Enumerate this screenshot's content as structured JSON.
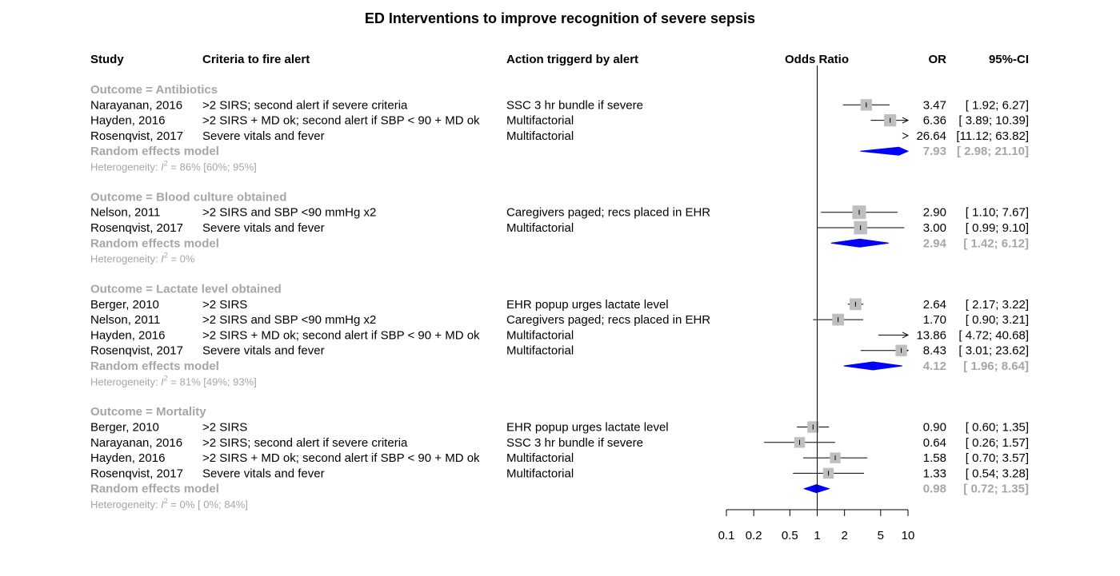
{
  "chart_data": {
    "type": "forest",
    "title": "ED Interventions to improve recognition of severe sepsis",
    "headers": {
      "study": "Study",
      "criteria": "Criteria to fire alert",
      "action": "Action triggerd by alert",
      "effect": "Odds Ratio",
      "or": "OR",
      "ci": "95%-CI"
    },
    "x_scale": "log",
    "xlim": [
      0.1,
      10
    ],
    "ticks": [
      "0.1",
      "0.2",
      "0.5",
      "1",
      "2",
      "5",
      "10"
    ],
    "tick_values": [
      0.1,
      0.2,
      0.5,
      1,
      2,
      5,
      10
    ],
    "reference_line": 1,
    "colors": {
      "box": "#bfbfbf",
      "diamond": "#0000ff",
      "summary_text": "#a6a6a6",
      "text": "#000000"
    },
    "groups": [
      {
        "label": "Outcome = Antibiotics",
        "studies": [
          {
            "study": "Narayanan, 2016",
            "criteria": ">2 SIRS; second alert if severe criteria",
            "action": "SSC 3 hr bundle if severe",
            "or": 3.47,
            "lo": 1.92,
            "hi": 6.27,
            "or_text": "3.47",
            "ci_text": "[ 1.92;  6.27]",
            "weight": 0.7
          },
          {
            "study": "Hayden, 2016",
            "criteria": ">2 SIRS + MD ok; second alert if SBP < 90 + MD ok",
            "action": "Multifactorial",
            "or": 6.36,
            "lo": 3.89,
            "hi": 10.39,
            "or_text": "6.36",
            "ci_text": "[ 3.89; 10.39]",
            "weight": 0.8
          },
          {
            "study": "Rosenqvist, 2017",
            "criteria": "Severe vitals and fever",
            "action": "Multifactorial",
            "or": 26.64,
            "lo": 11.12,
            "hi": 63.82,
            "or_text": "26.64",
            "ci_text": "[11.12; 63.82]",
            "weight": 0.6
          }
        ],
        "model": {
          "label": "Random effects model",
          "or": 7.93,
          "lo": 2.98,
          "hi": 21.1,
          "or_text": "7.93",
          "ci_text": "[ 2.98; 21.10]"
        },
        "heterogeneity": {
          "prefix": "Heterogeneity: ",
          "i": "I",
          "sup": "2",
          "suffix": " = 86% [60%; 95%]"
        }
      },
      {
        "label": "Outcome = Blood culture obtained",
        "studies": [
          {
            "study": "Nelson, 2011",
            "criteria": ">2 SIRS and SBP <90 mmHg x2",
            "action": "Caregivers paged; recs placed in EHR",
            "or": 2.9,
            "lo": 1.1,
            "hi": 7.67,
            "or_text": "2.90",
            "ci_text": "[ 1.10;  7.67]",
            "weight": 1.0
          },
          {
            "study": "Rosenqvist, 2017",
            "criteria": "Severe vitals and fever",
            "action": "Multifactorial",
            "or": 3.0,
            "lo": 0.99,
            "hi": 9.1,
            "or_text": "3.00",
            "ci_text": "[ 0.99;  9.10]",
            "weight": 0.95
          }
        ],
        "model": {
          "label": "Random effects model",
          "or": 2.94,
          "lo": 1.42,
          "hi": 6.12,
          "or_text": "2.94",
          "ci_text": "[ 1.42;  6.12]"
        },
        "heterogeneity": {
          "prefix": "Heterogeneity: ",
          "i": "I",
          "sup": "2",
          "suffix": " = 0%"
        }
      },
      {
        "label": "Outcome = Lactate level obtained",
        "studies": [
          {
            "study": "Berger, 2010",
            "criteria": ">2 SIRS",
            "action": "EHR popup urges lactate level",
            "or": 2.64,
            "lo": 2.17,
            "hi": 3.22,
            "or_text": "2.64",
            "ci_text": "[ 2.17;  3.22]",
            "weight": 0.75
          },
          {
            "study": "Nelson, 2011",
            "criteria": ">2 SIRS and SBP <90 mmHg x2",
            "action": "Caregivers paged; recs placed in EHR",
            "or": 1.7,
            "lo": 0.9,
            "hi": 3.21,
            "or_text": "1.70",
            "ci_text": "[ 0.90;  3.21]",
            "weight": 0.75
          },
          {
            "study": "Hayden, 2016",
            "criteria": ">2 SIRS + MD ok; second alert if SBP < 90 + MD ok",
            "action": "Multifactorial",
            "or": 13.86,
            "lo": 4.72,
            "hi": 40.68,
            "or_text": "13.86",
            "ci_text": "[ 4.72; 40.68]",
            "weight": 0.5
          },
          {
            "study": "Rosenqvist, 2017",
            "criteria": "Severe vitals and fever",
            "action": "Multifactorial",
            "or": 8.43,
            "lo": 3.01,
            "hi": 23.62,
            "or_text": "8.43",
            "ci_text": "[ 3.01; 23.62]",
            "weight": 0.7
          }
        ],
        "model": {
          "label": "Random effects model",
          "or": 4.12,
          "lo": 1.96,
          "hi": 8.64,
          "or_text": "4.12",
          "ci_text": "[ 1.96;  8.64]"
        },
        "heterogeneity": {
          "prefix": "Heterogeneity: ",
          "i": "I",
          "sup": "2",
          "suffix": " = 81% [49%; 93%]"
        }
      },
      {
        "label": "Outcome = Mortality",
        "studies": [
          {
            "study": "Berger, 2010",
            "criteria": ">2 SIRS",
            "action": "EHR popup urges lactate level",
            "or": 0.9,
            "lo": 0.6,
            "hi": 1.35,
            "or_text": "0.90",
            "ci_text": "[ 0.60;  1.35]",
            "weight": 0.7
          },
          {
            "study": "Narayanan, 2016",
            "criteria": ">2 SIRS; second alert if severe criteria",
            "action": "SSC 3 hr bundle if severe",
            "or": 0.64,
            "lo": 0.26,
            "hi": 1.57,
            "or_text": "0.64",
            "ci_text": "[ 0.26;  1.57]",
            "weight": 0.6
          },
          {
            "study": "Hayden, 2016",
            "criteria": ">2 SIRS + MD ok; second alert if SBP < 90 + MD ok",
            "action": "Multifactorial",
            "or": 1.58,
            "lo": 0.7,
            "hi": 3.57,
            "or_text": "1.58",
            "ci_text": "[ 0.70;  3.57]",
            "weight": 0.6
          },
          {
            "study": "Rosenqvist, 2017",
            "criteria": "Severe vitals and fever",
            "action": "Multifactorial",
            "or": 1.33,
            "lo": 0.54,
            "hi": 3.28,
            "or_text": "1.33",
            "ci_text": "[ 0.54;  3.28]",
            "weight": 0.6
          }
        ],
        "model": {
          "label": "Random effects model",
          "or": 0.98,
          "lo": 0.72,
          "hi": 1.35,
          "or_text": "0.98",
          "ci_text": "[ 0.72;  1.35]"
        },
        "heterogeneity": {
          "prefix": "Heterogeneity: ",
          "i": "I",
          "sup": "2",
          "suffix": " = 0% [ 0%; 84%]"
        }
      }
    ]
  }
}
